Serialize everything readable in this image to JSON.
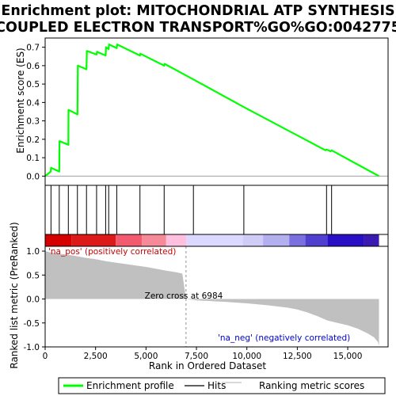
{
  "chart_data": {
    "type": "line",
    "title_lines": [
      "Enrichment plot: MITOCHONDRIAL ATP SYNTHESIS",
      "COUPLED ELECTRON TRANSPORT%GO%GO:0042775"
    ],
    "x_range": [
      0,
      17000
    ],
    "x_ticks": [
      0,
      2500,
      5000,
      7500,
      10000,
      12500,
      15000
    ],
    "x_tick_labels": [
      "0",
      "2,500",
      "5,000",
      "7,500",
      "10,000",
      "12,500",
      "15,000"
    ],
    "xlabel": "Rank in Ordered Dataset",
    "es_panel": {
      "ylabel": "Enrichment score (ES)",
      "ylim": [
        -0.05,
        0.75
      ],
      "y_ticks": [
        0.0,
        0.1,
        0.2,
        0.3,
        0.4,
        0.5,
        0.6,
        0.7
      ],
      "y_tick_labels": [
        "0.0",
        "0.1",
        "0.2",
        "0.3",
        "0.4",
        "0.5",
        "0.6",
        "0.7"
      ],
      "series": [
        {
          "name": "Enrichment profile",
          "color": "#00ff00",
          "x": [
            0,
            280,
            290,
            700,
            710,
            1150,
            1160,
            1600,
            1620,
            2050,
            2070,
            2550,
            2570,
            3000,
            3020,
            3150,
            3170,
            3550,
            3570,
            4700,
            4720,
            5900,
            5920,
            7350,
            9850,
            13900,
            13950,
            14150,
            14200,
            16550
          ],
          "y": [
            0.0,
            0.025,
            0.045,
            0.025,
            0.19,
            0.17,
            0.36,
            0.335,
            0.6,
            0.58,
            0.68,
            0.66,
            0.675,
            0.655,
            0.7,
            0.69,
            0.715,
            0.695,
            0.715,
            0.655,
            0.665,
            0.6,
            0.61,
            0.525,
            0.375,
            0.14,
            0.145,
            0.135,
            0.14,
            0.0
          ]
        }
      ]
    },
    "hits": {
      "name": "Hits",
      "color": "#000000",
      "positions": [
        290,
        700,
        1150,
        1600,
        2050,
        2550,
        3000,
        3150,
        3550,
        4700,
        5900,
        7350,
        9850,
        13950,
        14200
      ]
    },
    "color_bar": {
      "stops": [
        {
          "x": 0,
          "color": "#d40000"
        },
        {
          "x": 1300,
          "color": "#dc1a1a"
        },
        {
          "x": 3500,
          "color": "#f35a70"
        },
        {
          "x": 4800,
          "color": "#f78a98"
        },
        {
          "x": 6000,
          "color": "#ffc0e0"
        },
        {
          "x": 7000,
          "color": "#dcd8ff"
        },
        {
          "x": 9800,
          "color": "#d0ccf8"
        },
        {
          "x": 10800,
          "color": "#b4b0f0"
        },
        {
          "x": 12100,
          "color": "#7a70e0"
        },
        {
          "x": 12900,
          "color": "#5040d0"
        },
        {
          "x": 14000,
          "color": "#2a10c4"
        },
        {
          "x": 15800,
          "color": "#3a1ab0"
        },
        {
          "x": 16550,
          "color": "#3a1ab0"
        }
      ]
    },
    "metric_panel": {
      "ylabel": "Ranked list metric (PreRanked)",
      "ylim": [
        -1.0,
        1.1
      ],
      "y_ticks": [
        1.0,
        0.5,
        0.0,
        -0.5,
        -1.0
      ],
      "y_tick_labels": [
        "1.0",
        "0.5",
        "0.0",
        "-0.5",
        "-1.0"
      ],
      "series": [
        {
          "name": "Ranking metric scores",
          "color": "#c0c0c0",
          "x": [
            0,
            10,
            100,
            300,
            600,
            1000,
            1500,
            2000,
            2500,
            3000,
            3500,
            4000,
            4500,
            5000,
            5500,
            6000,
            6500,
            6800,
            6984,
            7500,
            8000,
            9000,
            10000,
            11000,
            12000,
            12500,
            13000,
            13500,
            14000,
            14500,
            15000,
            15500,
            16000,
            16300,
            16500,
            16550
          ],
          "y": [
            1.05,
            1.0,
            0.99,
            0.97,
            0.95,
            0.93,
            0.9,
            0.86,
            0.83,
            0.79,
            0.76,
            0.73,
            0.7,
            0.67,
            0.63,
            0.59,
            0.56,
            0.53,
            0.0,
            -0.03,
            -0.04,
            -0.06,
            -0.09,
            -0.13,
            -0.18,
            -0.22,
            -0.28,
            -0.36,
            -0.45,
            -0.5,
            -0.55,
            -0.62,
            -0.72,
            -0.8,
            -0.9,
            -0.98
          ]
        }
      ],
      "zero_cross_label": "Zero cross at 6984",
      "zero_cross_x": 6984,
      "pos_label": "'na_pos' (positively correlated)",
      "neg_label": "'na_neg' (negatively correlated)"
    },
    "legend": {
      "placement": "bottom",
      "entries": [
        {
          "label": "Enrichment profile",
          "color": "#00ff00"
        },
        {
          "label": "Hits",
          "color": "#000000"
        },
        {
          "label": "Ranking metric scores",
          "color": "#c0c0c0"
        }
      ]
    }
  }
}
